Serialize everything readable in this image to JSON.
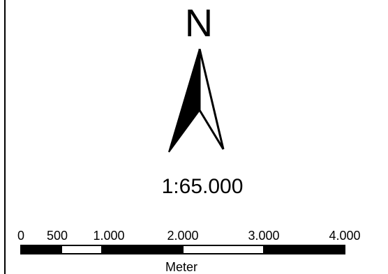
{
  "north_arrow": {
    "letter": "N",
    "icon": "north-arrow-icon"
  },
  "scale_ratio": "1:65.000",
  "scale_bar": {
    "unit": "Meter",
    "min": 0,
    "max": 4000,
    "ticks": [
      {
        "value": 0,
        "label": "0"
      },
      {
        "value": 500,
        "label": "500"
      },
      {
        "value": 1000,
        "label": "1.000"
      },
      {
        "value": 2000,
        "label": "2.000"
      },
      {
        "value": 3000,
        "label": "3.000"
      },
      {
        "value": 4000,
        "label": "4.000"
      }
    ],
    "segments": [
      {
        "from": 0,
        "to": 500,
        "fill": "black"
      },
      {
        "from": 500,
        "to": 1000,
        "fill": "white"
      },
      {
        "from": 1000,
        "to": 2000,
        "fill": "black"
      },
      {
        "from": 2000,
        "to": 3000,
        "fill": "white"
      },
      {
        "from": 3000,
        "to": 4000,
        "fill": "black"
      }
    ]
  }
}
